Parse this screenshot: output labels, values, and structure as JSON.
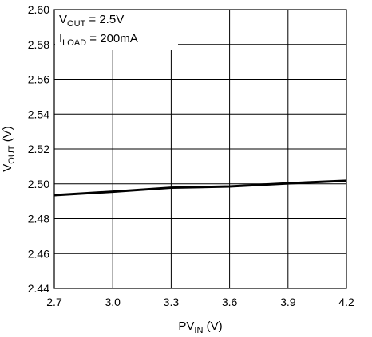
{
  "chart_data": {
    "type": "line",
    "title": "",
    "xlabel": {
      "main": "PV",
      "sub": "IN",
      "unit": " (V)"
    },
    "ylabel": {
      "main": "V",
      "sub": "OUT",
      "unit": " (V)"
    },
    "xlim": [
      2.7,
      4.2
    ],
    "ylim": [
      2.44,
      2.6
    ],
    "x_ticks": [
      2.7,
      3.0,
      3.3,
      3.6,
      3.9,
      4.2
    ],
    "x_tick_labels": [
      "2.7",
      "3.0",
      "3.3",
      "3.6",
      "3.9",
      "4.2"
    ],
    "y_ticks": [
      2.44,
      2.46,
      2.48,
      2.5,
      2.52,
      2.54,
      2.56,
      2.58,
      2.6
    ],
    "y_tick_labels": [
      "2.44",
      "2.46",
      "2.48",
      "2.50",
      "2.52",
      "2.54",
      "2.56",
      "2.58",
      "2.60"
    ],
    "grid": true,
    "annotations": [
      {
        "main": "V",
        "sub": "OUT",
        "rest": " = 2.5V"
      },
      {
        "main": "I",
        "sub": "LOAD",
        "rest": " = 200mA"
      }
    ],
    "series": [
      {
        "color": "#000000",
        "x": [
          2.7,
          3.0,
          3.3,
          3.6,
          3.9,
          4.2
        ],
        "y": [
          2.4935,
          2.4955,
          2.4978,
          2.4985,
          2.5003,
          2.5018
        ]
      }
    ]
  }
}
